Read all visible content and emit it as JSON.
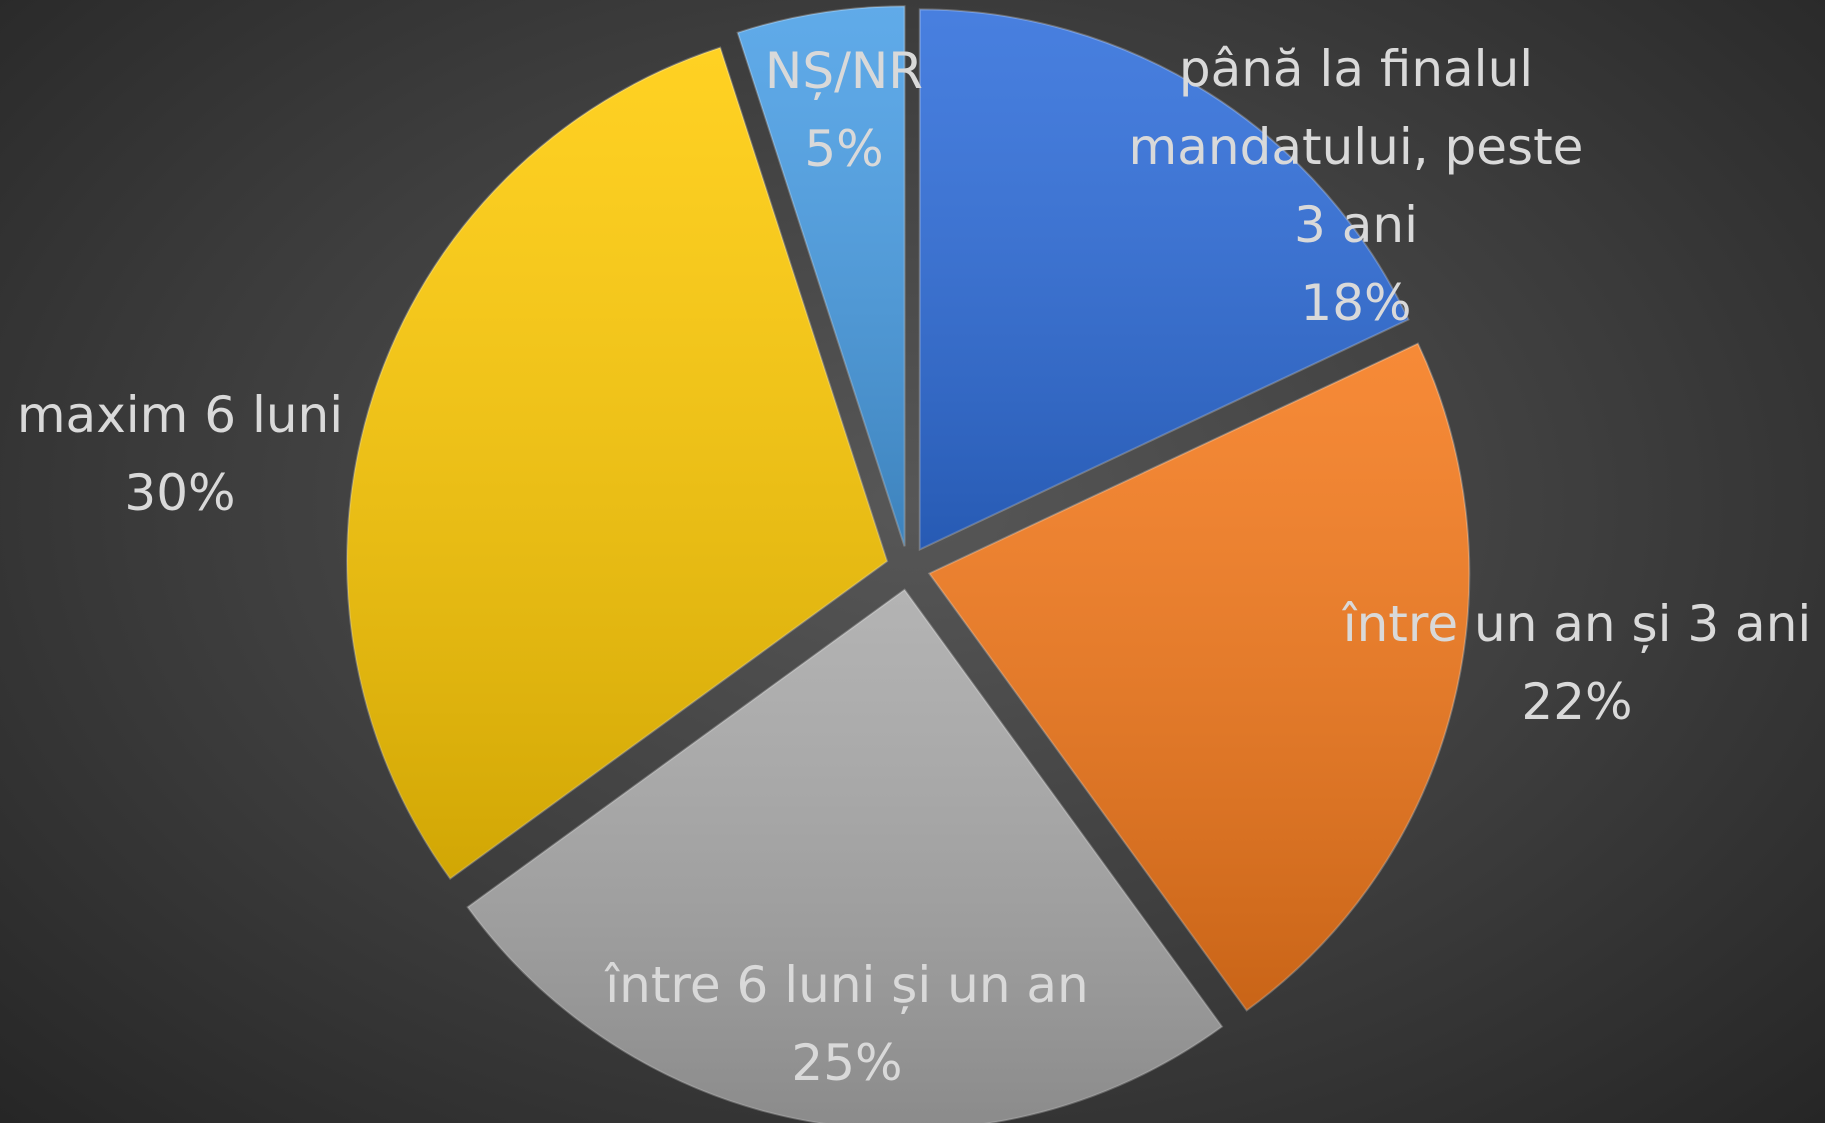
{
  "chart_data": {
    "type": "pie",
    "categories": [
      "până la finalul mandatului, peste 3 ani",
      "între un an și 3 ani",
      "între 6 luni și un an",
      "maxim 6 luni",
      "NȘ/NR"
    ],
    "values": [
      18,
      22,
      25,
      30,
      5
    ],
    "value_labels": [
      "18%",
      "22%",
      "25%",
      "30%",
      "5%"
    ],
    "colors": [
      "#2f6edb",
      "#f57a1c",
      "#a9a9a9",
      "#ffcb05",
      "#4a9fe6"
    ]
  }
}
